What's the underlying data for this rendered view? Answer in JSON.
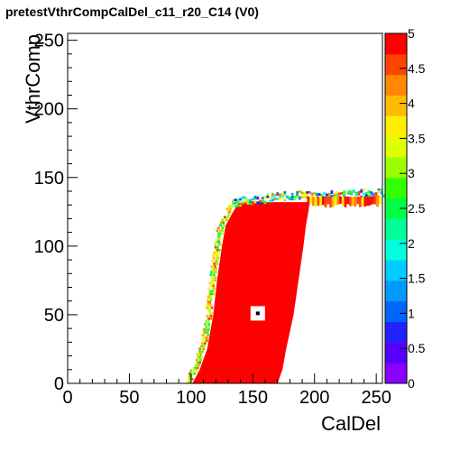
{
  "title": "pretestVthrCompCalDel_c11_r20_C14 (V0)",
  "colors": {
    "saturation": "#ff0000",
    "frame": "#000000",
    "background": "#ffffff",
    "palette": [
      "#8800ff",
      "#5500ff",
      "#2222ff",
      "#0066ff",
      "#0099ff",
      "#00ccff",
      "#00ffdd",
      "#00ff99",
      "#00ff44",
      "#33ff00",
      "#99ff00",
      "#ddff00",
      "#ffee00",
      "#ffbb00",
      "#ff8800",
      "#ff4400",
      "#ff0000"
    ]
  },
  "chart_data": {
    "type": "heatmap",
    "title": "pretestVthrCompCalDel_c11_r20_C14 (V0)",
    "xlabel": "CalDel",
    "ylabel": "VthrComp",
    "xlim": [
      0,
      255
    ],
    "ylim": [
      0,
      255
    ],
    "zlim": [
      0,
      5
    ],
    "x_ticks": [
      "0",
      "50",
      "100",
      "150",
      "200",
      "250"
    ],
    "y_ticks": [
      "0",
      "50",
      "100",
      "150",
      "200",
      "250"
    ],
    "z_ticks": [
      "0",
      "0.5",
      "1",
      "1.5",
      "2",
      "2.5",
      "3",
      "3.5",
      "4",
      "4.5",
      "5"
    ],
    "saturated_value": 5,
    "region_boundaries": [
      {
        "vthrcomp": 0,
        "caldel_left": 101,
        "caldel_right": 170
      },
      {
        "vthrcomp": 10,
        "caldel_left": 107,
        "caldel_right": 174
      },
      {
        "vthrcomp": 25,
        "caldel_left": 113,
        "caldel_right": 177
      },
      {
        "vthrcomp": 50,
        "caldel_left": 118,
        "caldel_right": 183
      },
      {
        "vthrcomp": 75,
        "caldel_left": 121,
        "caldel_right": 187
      },
      {
        "vthrcomp": 100,
        "caldel_left": 125,
        "caldel_right": 191
      },
      {
        "vthrcomp": 115,
        "caldel_left": 128,
        "caldel_right": 193
      },
      {
        "vthrcomp": 125,
        "caldel_left": 134,
        "caldel_right": 195
      },
      {
        "vthrcomp": 132,
        "caldel_left": 139,
        "caldel_right": 196
      }
    ],
    "plateau": {
      "vthrcomp_from": 128,
      "vthrcomp_to": 140,
      "caldel_from": 190,
      "caldel_to": 255
    },
    "marked_point": {
      "caldel": 154,
      "vthrcomp": 51
    }
  }
}
